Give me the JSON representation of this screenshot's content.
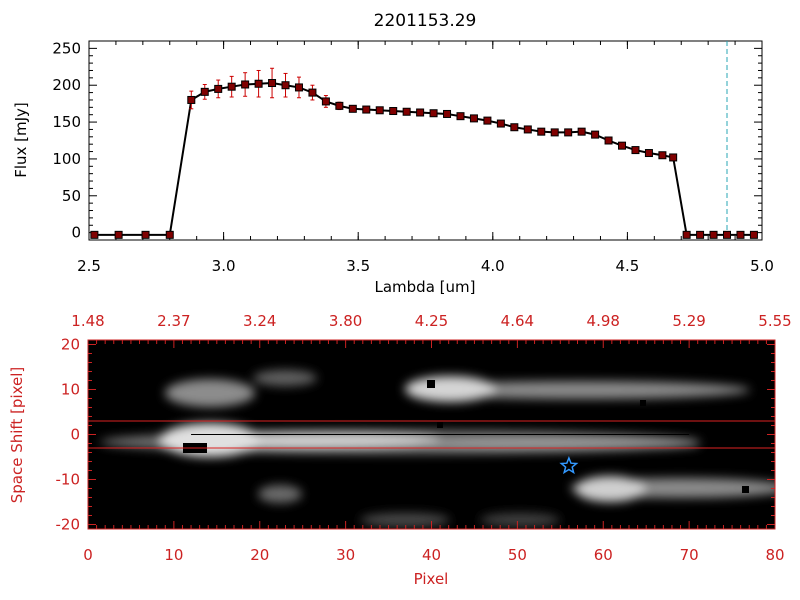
{
  "chart_data": [
    {
      "type": "line",
      "title": "2201153.29",
      "xlabel": "Lambda [um]",
      "ylabel": "Flux [mJy]",
      "xlim": [
        2.5,
        5.0
      ],
      "ylim": [
        -10,
        260
      ],
      "xticks": [
        "2.5",
        "3.0",
        "3.5",
        "4.0",
        "4.5",
        "5.0"
      ],
      "xtick_values": [
        2.5,
        3.0,
        3.5,
        4.0,
        4.5,
        5.0
      ],
      "yticks": [
        "0",
        "50",
        "100",
        "150",
        "200",
        "250"
      ],
      "ytick_values": [
        0,
        50,
        100,
        150,
        200,
        250
      ],
      "marker": "square",
      "line_color": "#000000",
      "marker_color": "#800000",
      "errorbar_color": "#cc0000",
      "vline": {
        "x": 4.87,
        "color": "#2aa7b5",
        "style": "dashed"
      },
      "series": [
        {
          "x": [
            2.52,
            2.61,
            2.71,
            2.8,
            2.88,
            2.93,
            2.98,
            3.03,
            3.08,
            3.13,
            3.18,
            3.23,
            3.28,
            3.33,
            3.38,
            3.43,
            3.48,
            3.53,
            3.58,
            3.63,
            3.68,
            3.73,
            3.78,
            3.83,
            3.88,
            3.93,
            3.98,
            4.03,
            4.08,
            4.13,
            4.18,
            4.23,
            4.28,
            4.33,
            4.38,
            4.43,
            4.48,
            4.53,
            4.58,
            4.63,
            4.67,
            4.72,
            4.77,
            4.82,
            4.87,
            4.92,
            4.97
          ],
          "y": [
            -3,
            -3,
            -3,
            -3,
            180,
            191,
            195,
            198,
            201,
            202,
            203,
            200,
            197,
            190,
            178,
            172,
            168,
            167,
            166,
            165,
            164,
            163,
            162,
            161,
            158,
            155,
            152,
            148,
            143,
            140,
            137,
            136,
            136,
            137,
            133,
            125,
            118,
            112,
            108,
            105,
            102,
            -3,
            -3,
            -3,
            -3,
            -3,
            -3
          ],
          "err": [
            0,
            0,
            0,
            0,
            12,
            10,
            12,
            14,
            16,
            18,
            20,
            16,
            14,
            10,
            8,
            5,
            4,
            3,
            3,
            3,
            3,
            3,
            3,
            3,
            3,
            3,
            3,
            3,
            3,
            3,
            3,
            3,
            3,
            3,
            3,
            3,
            3,
            3,
            3,
            3,
            3,
            0,
            0,
            0,
            0,
            0,
            0
          ]
        }
      ]
    },
    {
      "type": "heatmap",
      "xlabel": "Pixel",
      "ylabel": "Space Shift [pixel]",
      "xlim": [
        0,
        80
      ],
      "ylim": [
        -21,
        21
      ],
      "xticks": [
        "0",
        "10",
        "20",
        "30",
        "40",
        "50",
        "60",
        "70",
        "80"
      ],
      "xtick_values": [
        0,
        10,
        20,
        30,
        40,
        50,
        60,
        70,
        80
      ],
      "yticks": [
        "-20",
        "-10",
        "0",
        "10",
        "20"
      ],
      "ytick_values": [
        -20,
        -10,
        0,
        10,
        20
      ],
      "top_axis_labels": [
        "1.48",
        "2.37",
        "3.24",
        "3.80",
        "4.25",
        "4.64",
        "4.98",
        "5.29",
        "5.55"
      ],
      "axis_color": "#cc2222",
      "hlines": [
        3,
        -3
      ],
      "hline_color": "#dd2222",
      "star": {
        "x": 56,
        "y": -7,
        "color": "#3399ff"
      },
      "colormap": "grayscale"
    }
  ]
}
